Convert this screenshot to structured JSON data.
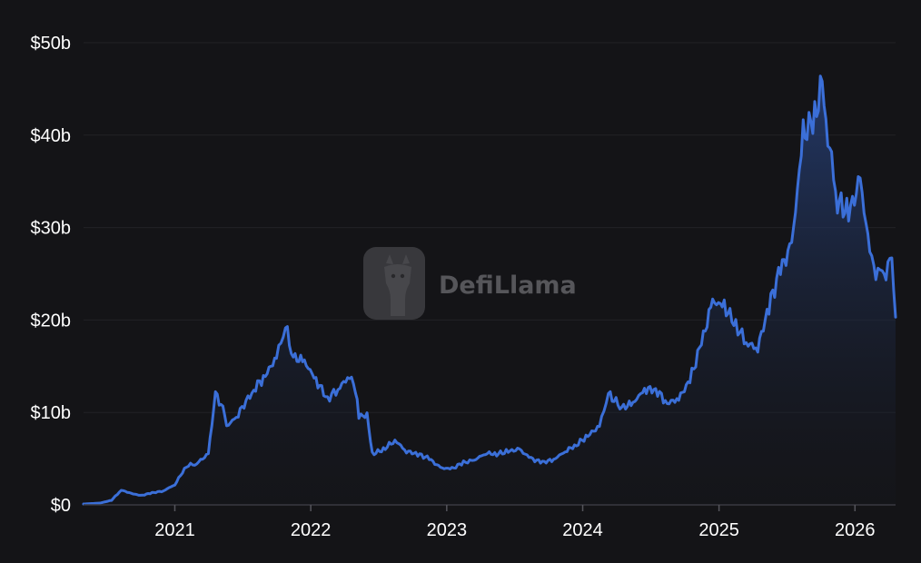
{
  "chart_data": {
    "type": "area",
    "title": "",
    "xlabel": "",
    "ylabel": "",
    "x_ticks": [
      "2021",
      "2022",
      "2023",
      "2024",
      "2025",
      "2026"
    ],
    "y_ticks": [
      {
        "value": 0,
        "label": "$0"
      },
      {
        "value": 10,
        "label": "$10b"
      },
      {
        "value": 20,
        "label": "$20b"
      },
      {
        "value": 30,
        "label": "$30b"
      },
      {
        "value": 40,
        "label": "$40b"
      },
      {
        "value": 50,
        "label": "$50b"
      }
    ],
    "y_unit": "billions USD",
    "xlim": [
      "2020-05-01",
      "2026-04-20"
    ],
    "ylim": [
      0,
      50
    ],
    "grid": true,
    "series": [
      {
        "color": "#3b6fd8",
        "points": [
          [
            "2020-05-01",
            0.1
          ],
          [
            "2020-06-15",
            0.2
          ],
          [
            "2020-07-15",
            0.5
          ],
          [
            "2020-08-10",
            1.6
          ],
          [
            "2020-09-01",
            1.3
          ],
          [
            "2020-10-01",
            1.0
          ],
          [
            "2020-11-01",
            1.3
          ],
          [
            "2020-12-01",
            1.5
          ],
          [
            "2021-01-01",
            2.2
          ],
          [
            "2021-02-01",
            4.2
          ],
          [
            "2021-03-01",
            4.5
          ],
          [
            "2021-04-01",
            5.5
          ],
          [
            "2021-04-20",
            12.0
          ],
          [
            "2021-05-10",
            10.5
          ],
          [
            "2021-05-20",
            8.5
          ],
          [
            "2021-06-15",
            9.5
          ],
          [
            "2021-08-01",
            12.5
          ],
          [
            "2021-09-01",
            14.0
          ],
          [
            "2021-10-01",
            16.0
          ],
          [
            "2021-10-25",
            19.3
          ],
          [
            "2021-11-15",
            16.0
          ],
          [
            "2021-12-15",
            15.5
          ],
          [
            "2022-01-15",
            13.5
          ],
          [
            "2022-02-15",
            11.5
          ],
          [
            "2022-03-15",
            12.5
          ],
          [
            "2022-04-15",
            14.0
          ],
          [
            "2022-05-01",
            12.5
          ],
          [
            "2022-05-10",
            9.5
          ],
          [
            "2022-06-01",
            9.8
          ],
          [
            "2022-06-15",
            5.5
          ],
          [
            "2022-07-15",
            6.0
          ],
          [
            "2022-08-15",
            7.0
          ],
          [
            "2022-09-15",
            5.8
          ],
          [
            "2022-10-15",
            5.5
          ],
          [
            "2022-11-15",
            5.0
          ],
          [
            "2022-12-15",
            4.0
          ],
          [
            "2023-01-15",
            3.9
          ],
          [
            "2023-02-15",
            4.6
          ],
          [
            "2023-03-15",
            4.8
          ],
          [
            "2023-04-15",
            5.6
          ],
          [
            "2023-05-15",
            5.5
          ],
          [
            "2023-06-15",
            5.8
          ],
          [
            "2023-07-15",
            6.0
          ],
          [
            "2023-08-15",
            5.0
          ],
          [
            "2023-09-15",
            4.6
          ],
          [
            "2023-10-15",
            4.9
          ],
          [
            "2023-11-15",
            5.8
          ],
          [
            "2023-12-15",
            6.5
          ],
          [
            "2024-01-15",
            7.5
          ],
          [
            "2024-02-15",
            8.5
          ],
          [
            "2024-03-10",
            12.0
          ],
          [
            "2024-04-15",
            10.5
          ],
          [
            "2024-05-15",
            11.0
          ],
          [
            "2024-06-15",
            12.5
          ],
          [
            "2024-07-15",
            12.5
          ],
          [
            "2024-08-15",
            11.0
          ],
          [
            "2024-09-15",
            11.5
          ],
          [
            "2024-10-15",
            13.5
          ],
          [
            "2024-11-15",
            17.5
          ],
          [
            "2024-12-15",
            22.0
          ],
          [
            "2025-01-15",
            21.5
          ],
          [
            "2025-02-15",
            19.5
          ],
          [
            "2025-03-15",
            17.5
          ],
          [
            "2025-04-15",
            17.0
          ],
          [
            "2025-05-15",
            21.5
          ],
          [
            "2025-06-15",
            25.5
          ],
          [
            "2025-07-15",
            28.0
          ],
          [
            "2025-08-15",
            40.0
          ],
          [
            "2025-09-15",
            42.0
          ],
          [
            "2025-10-05",
            45.5
          ],
          [
            "2025-10-20",
            40.0
          ],
          [
            "2025-11-15",
            33.0
          ],
          [
            "2025-12-15",
            31.5
          ],
          [
            "2026-01-15",
            35.0
          ],
          [
            "2026-02-15",
            26.0
          ],
          [
            "2026-03-15",
            24.5
          ],
          [
            "2026-04-10",
            26.5
          ],
          [
            "2026-04-20",
            20.3
          ]
        ]
      }
    ]
  },
  "watermark": {
    "brand": "DefiLlama",
    "icon": "llama-icon"
  }
}
